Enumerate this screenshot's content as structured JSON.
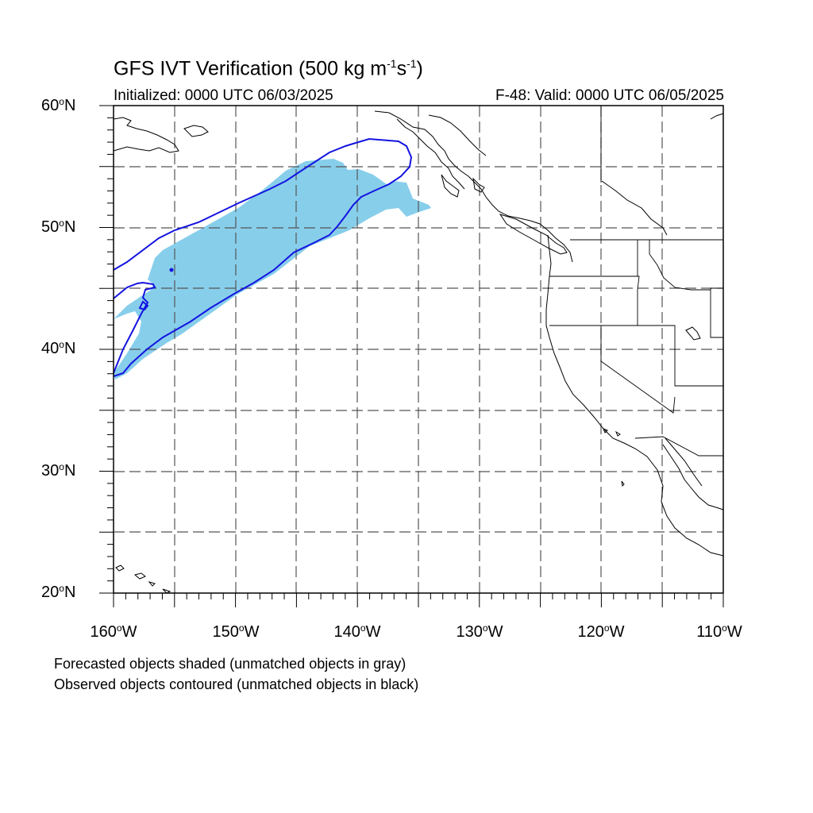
{
  "title": {
    "text": "GFS IVT Verification (500 kg m",
    "exp1": "-1",
    "mid": "s",
    "exp2": "-1",
    "close": ")"
  },
  "initialized": "Initialized: 0000 UTC 06/03/2025",
  "valid": "F-48: Valid: 0000 UTC 06/05/2025",
  "lat_labels": [
    {
      "num": "60",
      "suffix": "N"
    },
    {
      "num": "50",
      "suffix": "N"
    },
    {
      "num": "40",
      "suffix": "N"
    },
    {
      "num": "30",
      "suffix": "N"
    },
    {
      "num": "20",
      "suffix": "N"
    }
  ],
  "lon_labels": [
    {
      "num": "160",
      "suffix": "W"
    },
    {
      "num": "150",
      "suffix": "W"
    },
    {
      "num": "140",
      "suffix": "W"
    },
    {
      "num": "130",
      "suffix": "W"
    },
    {
      "num": "120",
      "suffix": "W"
    },
    {
      "num": "110",
      "suffix": "W"
    }
  ],
  "notes": {
    "forecast": "Forecasted objects shaded (unmatched objects in gray)",
    "observed": "Observed objects contoured (unmatched objects in black)"
  },
  "map": {
    "lon_range": [
      -160,
      -110
    ],
    "lat_range": [
      20,
      60
    ],
    "grid_lons": [
      -155,
      -150,
      -145,
      -140,
      -135,
      -130,
      -125,
      -120,
      -115
    ],
    "grid_lats": [
      25,
      30,
      35,
      40,
      45,
      50,
      55
    ],
    "colors": {
      "forecast_fill": "#87ceeb",
      "observed_contour": "#1414e0",
      "coast": "#000000",
      "grid": "#555555"
    }
  }
}
